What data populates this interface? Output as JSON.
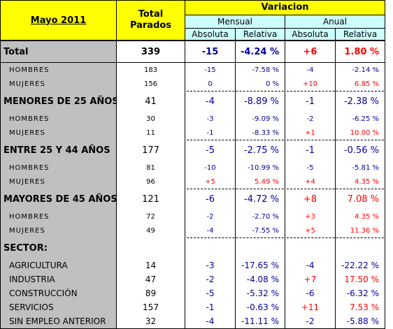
{
  "header": {
    "period": "Mayo 2011",
    "total_line1": "Total",
    "total_line2": "Parados",
    "variacion": "Variacion",
    "mensual": "Mensual",
    "anual": "Anual",
    "absoluta_m": "Absoluta",
    "relativa_m": "Relativa",
    "absoluta_a": "Absoluta",
    "relativa_a": "Relativa"
  },
  "rows": [
    {
      "label": "Total",
      "total": "339",
      "m_abs": "-15",
      "m_rel": "-4.24 %",
      "a_abs": "+6",
      "a_rel": "1.80 %"
    },
    {
      "label": "HOMBRES",
      "total": "183",
      "m_abs": "-15",
      "m_rel": "-7.58 %",
      "a_abs": "-4",
      "a_rel": "-2.14 %"
    },
    {
      "label": "MUJERES",
      "total": "156",
      "m_abs": "0",
      "m_rel": "0 %",
      "a_abs": "+10",
      "a_rel": "6.85 %"
    },
    {
      "label": "MENORES DE 25 AÑOS:",
      "total": "41",
      "m_abs": "-4",
      "m_rel": "-8.89 %",
      "a_abs": "-1",
      "a_rel": "-2.38 %"
    },
    {
      "label": "HOMBRES",
      "total": "30",
      "m_abs": "-3",
      "m_rel": "-9.09 %",
      "a_abs": "-2",
      "a_rel": "-6.25 %"
    },
    {
      "label": "MUJERES",
      "total": "11",
      "m_abs": "-1",
      "m_rel": "-8.33 %",
      "a_abs": "+1",
      "a_rel": "10.00 %"
    },
    {
      "label": "ENTRE 25 Y 44 AÑOS",
      "total": "177",
      "m_abs": "-5",
      "m_rel": "-2.75 %",
      "a_abs": "-1",
      "a_rel": "-0.56 %"
    },
    {
      "label": "HOMBRES",
      "total": "81",
      "m_abs": "-10",
      "m_rel": "-10.99 %",
      "a_abs": "-5",
      "a_rel": "-5.81 %"
    },
    {
      "label": "MUJERES",
      "total": "96",
      "m_abs": "+5",
      "m_rel": "5.49 %",
      "a_abs": "+4",
      "a_rel": "4.35 %"
    },
    {
      "label": "MAYORES DE 45 AÑOS",
      "total": "121",
      "m_abs": "-6",
      "m_rel": "-4.72 %",
      "a_abs": "+8",
      "a_rel": "7.08 %"
    },
    {
      "label": "HOMBRES",
      "total": "72",
      "m_abs": "-2",
      "m_rel": "-2.70 %",
      "a_abs": "+3",
      "a_rel": "4.35 %"
    },
    {
      "label": "MUJERES",
      "total": "49",
      "m_abs": "-4",
      "m_rel": "-7.55 %",
      "a_abs": "+5",
      "a_rel": "11.36 %"
    },
    {
      "label": "SECTOR:",
      "total": "",
      "m_abs": "",
      "m_rel": "",
      "a_abs": "",
      "a_rel": ""
    },
    {
      "label": "AGRICULTURA",
      "total": "14",
      "m_abs": "-3",
      "m_rel": "-17.65 %",
      "a_abs": "-4",
      "a_rel": "-22.22 %"
    },
    {
      "label": "INDUSTRIA",
      "total": "47",
      "m_abs": "-2",
      "m_rel": "-4.08 %",
      "a_abs": "+7",
      "a_rel": "17.50 %"
    },
    {
      "label": "CONSTRUCCIÓN",
      "total": "89",
      "m_abs": "-5",
      "m_rel": "-5.32 %",
      "a_abs": "-6",
      "a_rel": "-6.32 %"
    },
    {
      "label": "SERVICIOS",
      "total": "157",
      "m_abs": "-1",
      "m_rel": "-0.63 %",
      "a_abs": "+11",
      "a_rel": "7.53 %"
    },
    {
      "label": "SIN EMPLEO ANTERIOR",
      "total": "32",
      "m_abs": "-4",
      "m_rel": "-11.11 %",
      "a_abs": "-2",
      "a_rel": "-5.88 %"
    }
  ],
  "colors": {
    "header_yellow": "#ffff00",
    "sub_cyan": "#ccffff",
    "label_gray": "#c0c0c0",
    "negative_blue": "#000099",
    "positive_red": "#ff0000"
  }
}
